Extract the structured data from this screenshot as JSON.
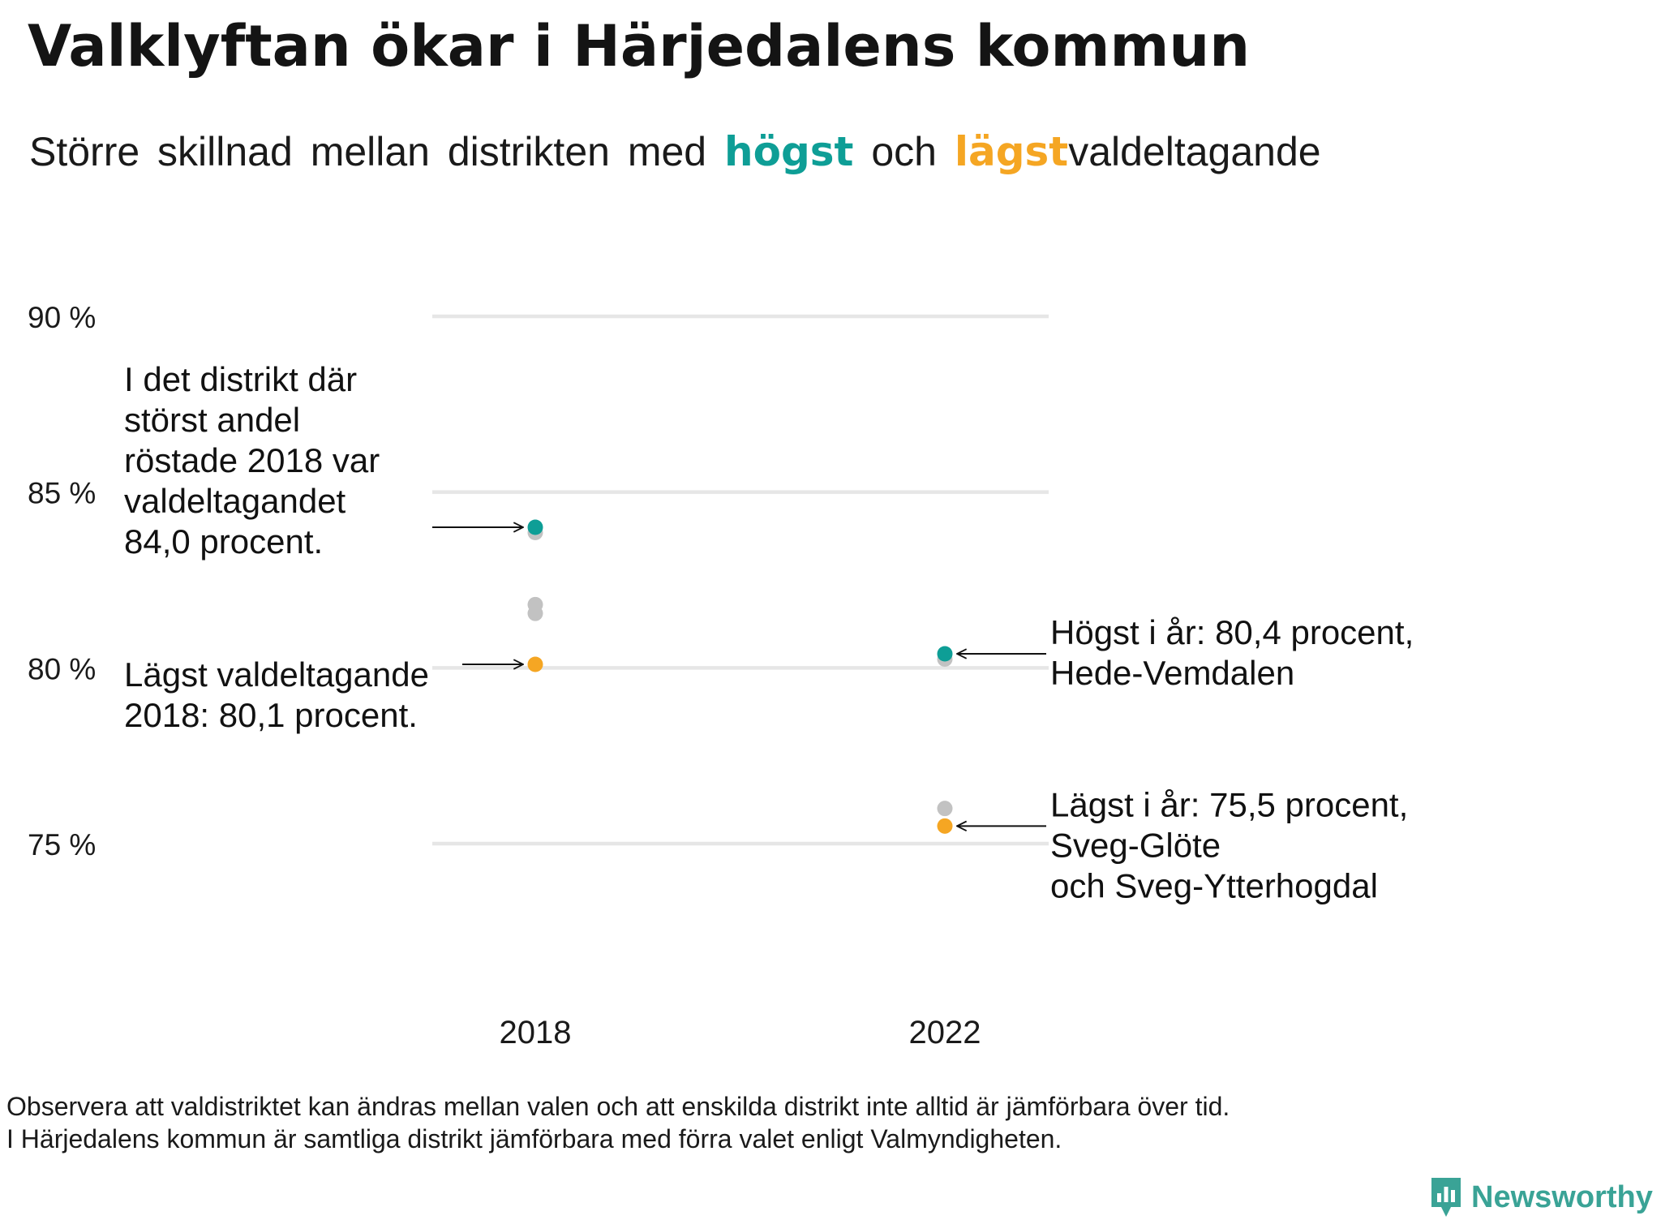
{
  "title": "Valklyftan ökar i Härjedalens kommun",
  "subtitle": {
    "prefix": "Större skillnad mellan distrikten med",
    "highest_word": "högst",
    "connector": "och",
    "lowest_word": "lägst",
    "suffix": "valdeltagande"
  },
  "colors": {
    "highest": "#0e9e96",
    "lowest": "#f5a623",
    "other": "#c2c2c2",
    "grid": "#e6e6e6",
    "text": "#111111"
  },
  "chart_data": {
    "type": "scatter",
    "title": "Valklyftan ökar i Härjedalens kommun",
    "subtitle": "Större skillnad mellan distrikten med högst och lägst valdeltagande",
    "categories": [
      "2018",
      "2022"
    ],
    "y_ticks": [
      75,
      80,
      85,
      90
    ],
    "y_tick_labels": [
      "75 %",
      "80 %",
      "85 %",
      "90 %"
    ],
    "ylim": [
      73,
      90
    ],
    "grid": true,
    "series": [
      {
        "name": "högst",
        "values": [
          84.0,
          80.4
        ]
      },
      {
        "name": "lägst",
        "values": [
          80.1,
          75.5
        ]
      }
    ],
    "other_points": [
      {
        "x": "2018",
        "values": [
          83.85,
          81.8,
          81.55
        ]
      },
      {
        "x": "2022",
        "values": [
          80.25,
          76.0
        ]
      }
    ],
    "annotations": [
      {
        "x": "2018",
        "y": 84.0,
        "side": "left",
        "lines": [
          "I det distrikt där",
          "störst andel",
          "röstade 2018 var",
          "valdeltagandet",
          "84,0 procent."
        ]
      },
      {
        "x": "2018",
        "y": 80.1,
        "side": "left",
        "lines": [
          "Lägst valdeltagande",
          "2018: 80,1 procent."
        ]
      },
      {
        "x": "2022",
        "y": 80.4,
        "side": "right",
        "lines": [
          "Högst i år: 80,4 procent,",
          "Hede-Vemdalen"
        ]
      },
      {
        "x": "2022",
        "y": 75.5,
        "side": "right",
        "lines": [
          "Lägst i år: 75,5 procent,",
          "Sveg-Glöte",
          "och Sveg-Ytterhogdal"
        ]
      }
    ]
  },
  "footnote": {
    "line1": "Observera att valdistriktet kan ändras mellan valen och att enskilda distrikt inte alltid är jämförbara över tid.",
    "line2": "I Härjedalens kommun är samtliga distrikt jämförbara med förra valet enligt Valmyndigheten."
  },
  "brand": {
    "name": "Newsworthy",
    "icon": "newsworthy-logo-icon"
  }
}
